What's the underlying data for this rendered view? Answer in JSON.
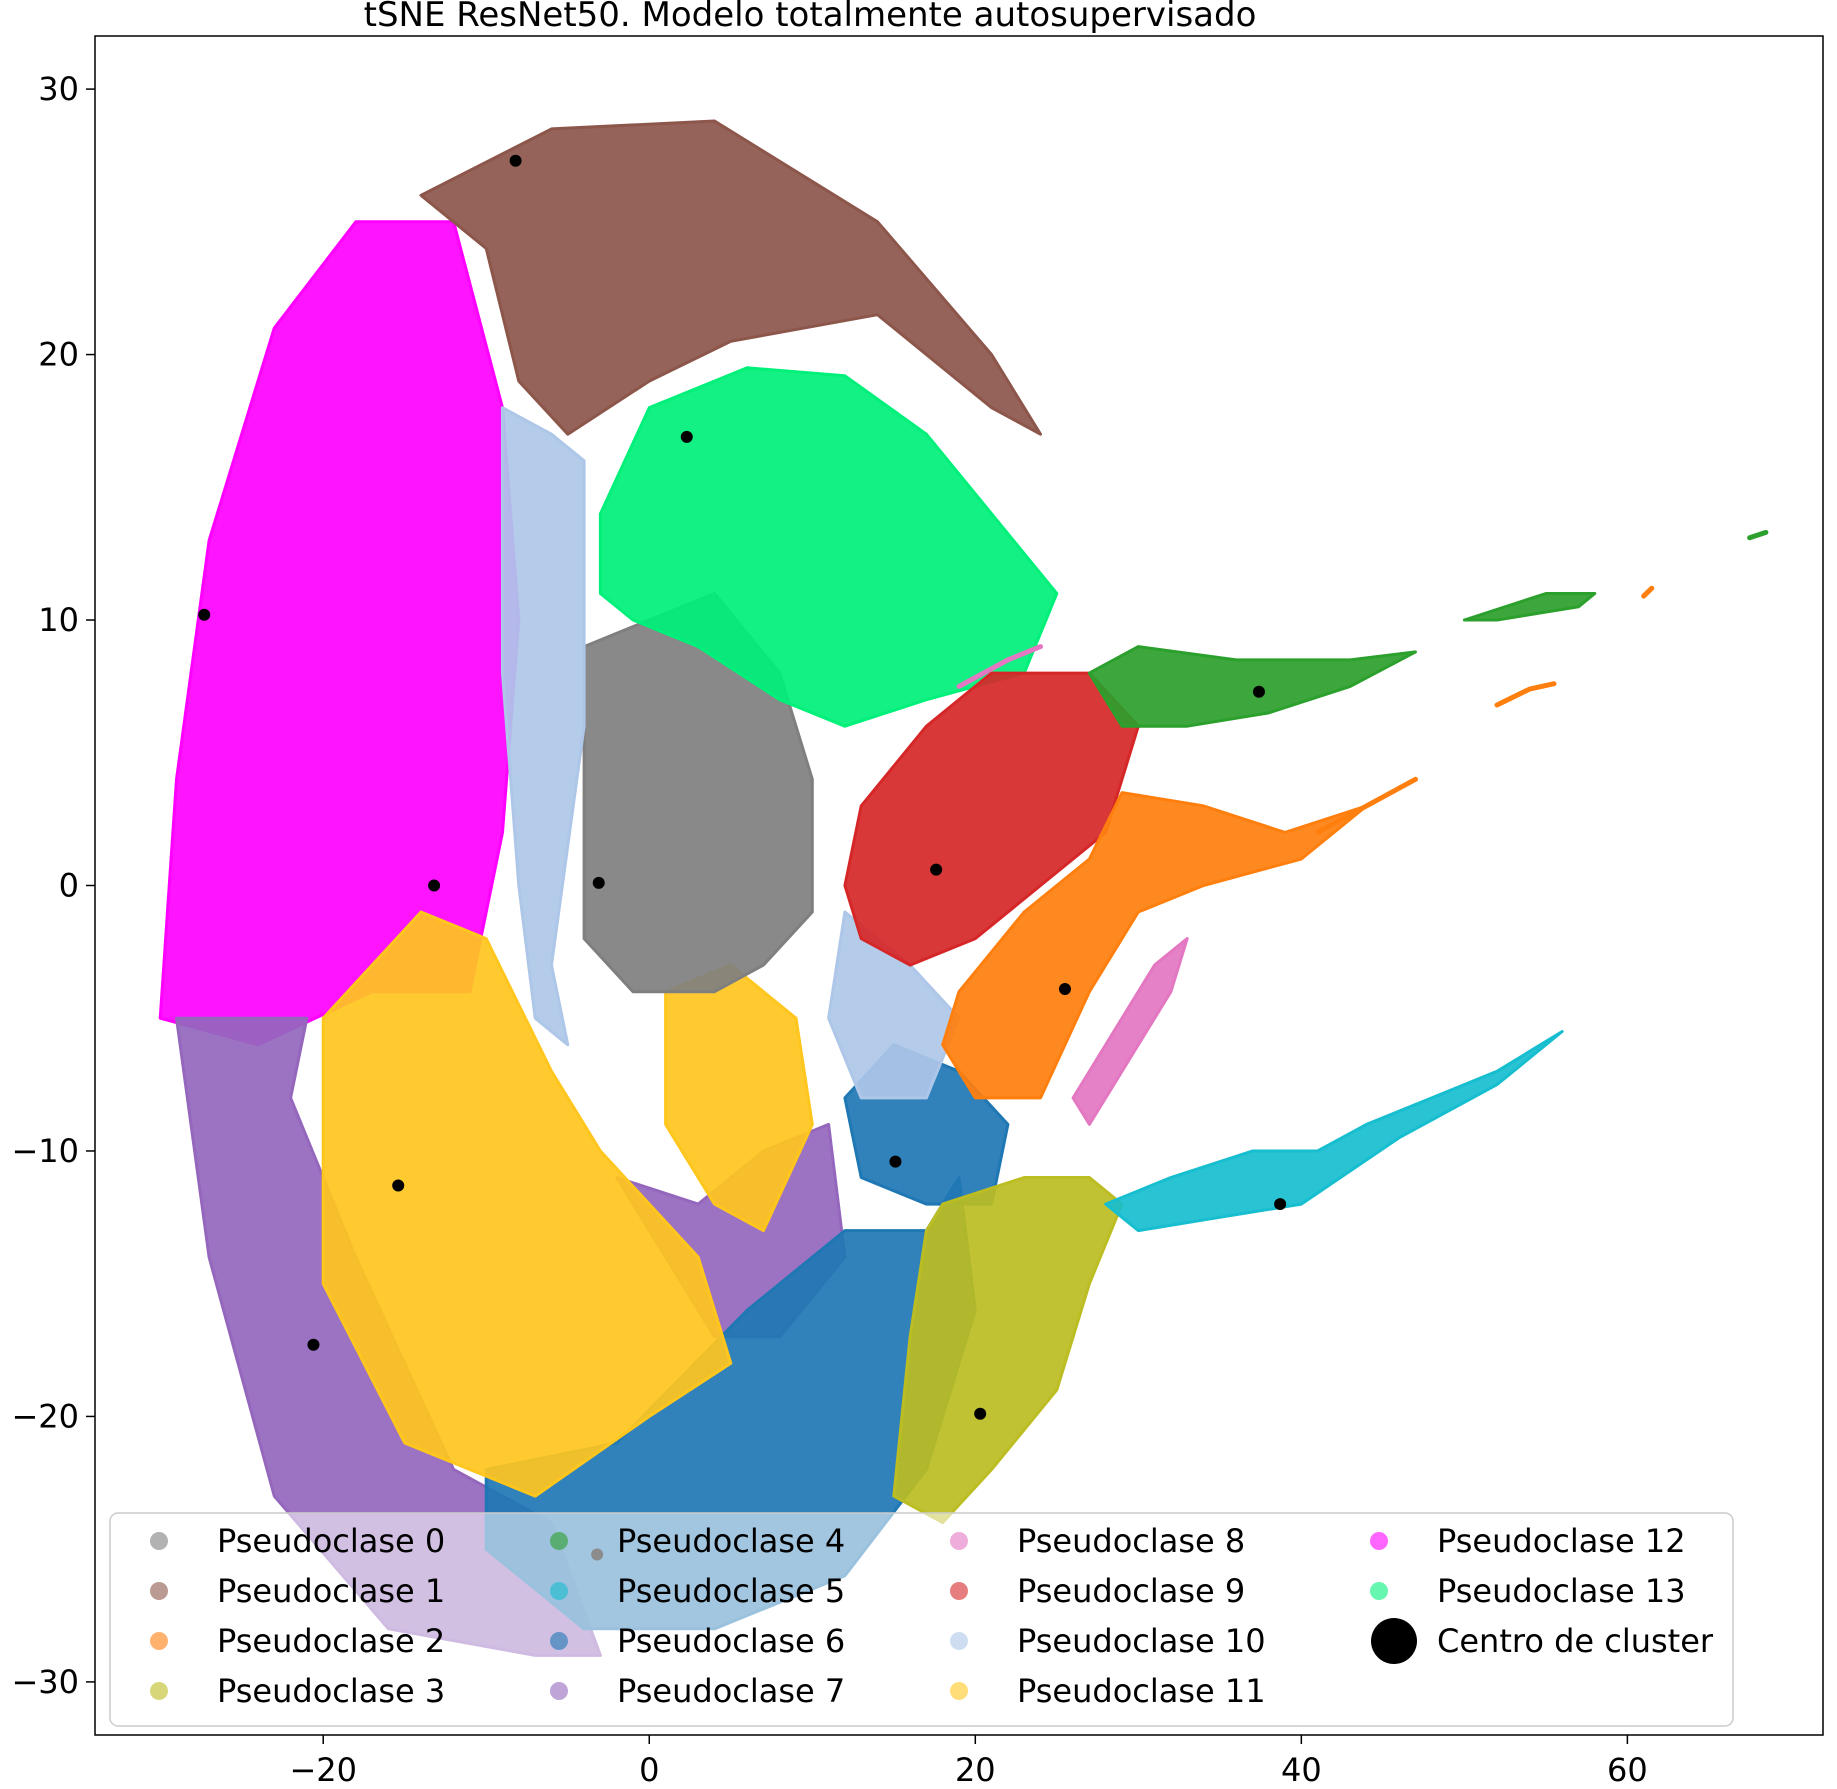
{
  "chart_data": {
    "type": "scatter",
    "title": "tSNE ResNet50. Modelo totalmente autosupervisado",
    "xlabel": "",
    "ylabel": "",
    "xlim": [
      -34,
      72
    ],
    "ylim": [
      -32,
      32
    ],
    "xticks": [
      -20,
      0,
      20,
      40,
      60
    ],
    "yticks": [
      30,
      20,
      10,
      0,
      -10,
      -20,
      -30
    ],
    "xtick_labels": [
      "−20",
      "0",
      "20",
      "40",
      "60"
    ],
    "ytick_labels": [
      "30",
      "20",
      "10",
      "0",
      "−10",
      "−20",
      "−30"
    ],
    "grid": false,
    "legend": {
      "placement": "lower-center",
      "columns": 4,
      "entries": [
        "Pseudoclase 0",
        "Pseudoclase 1",
        "Pseudoclase 2",
        "Pseudoclase 3",
        "Pseudoclase 4",
        "Pseudoclase 5",
        "Pseudoclase 6",
        "Pseudoclase 7",
        "Pseudoclase 8",
        "Pseudoclase 9",
        "Pseudoclase 10",
        "Pseudoclase 11",
        "Pseudoclase 12",
        "Pseudoclase 13",
        "Centro de cluster"
      ]
    },
    "series": [
      {
        "name": "Pseudoclase 0",
        "color": "#7f7f7f"
      },
      {
        "name": "Pseudoclase 1",
        "color": "#8c564b"
      },
      {
        "name": "Pseudoclase 2",
        "color": "#ff7f0e"
      },
      {
        "name": "Pseudoclase 3",
        "color": "#bcbd22"
      },
      {
        "name": "Pseudoclase 4",
        "color": "#2ca02c"
      },
      {
        "name": "Pseudoclase 5",
        "color": "#17becf"
      },
      {
        "name": "Pseudoclase 6",
        "color": "#1f77b4"
      },
      {
        "name": "Pseudoclase 7",
        "color": "#9467bd"
      },
      {
        "name": "Pseudoclase 8",
        "color": "#e377c2"
      },
      {
        "name": "Pseudoclase 9",
        "color": "#d62728"
      },
      {
        "name": "Pseudoclase 10",
        "color": "#aec7e8"
      },
      {
        "name": "Pseudoclase 11",
        "color": "#ffc61e"
      },
      {
        "name": "Pseudoclase 12",
        "color": "#ff00ff"
      },
      {
        "name": "Pseudoclase 13",
        "color": "#00f07a"
      }
    ],
    "cluster_centers": {
      "name": "Centro de cluster",
      "color": "#000000",
      "points": [
        {
          "x": -27.3,
          "y": 10.2
        },
        {
          "x": -8.2,
          "y": 27.3
        },
        {
          "x": 2.3,
          "y": 16.9
        },
        {
          "x": -13.2,
          "y": 0.0
        },
        {
          "x": -3.1,
          "y": 0.1
        },
        {
          "x": 17.6,
          "y": 0.6
        },
        {
          "x": 25.5,
          "y": -3.9
        },
        {
          "x": 37.4,
          "y": 7.3
        },
        {
          "x": 15.1,
          "y": -10.4
        },
        {
          "x": 38.7,
          "y": -12.0
        },
        {
          "x": -15.4,
          "y": -11.3
        },
        {
          "x": -20.6,
          "y": -17.3
        },
        {
          "x": 20.3,
          "y": -19.9
        },
        {
          "x": -3.2,
          "y": -25.2
        }
      ]
    }
  }
}
